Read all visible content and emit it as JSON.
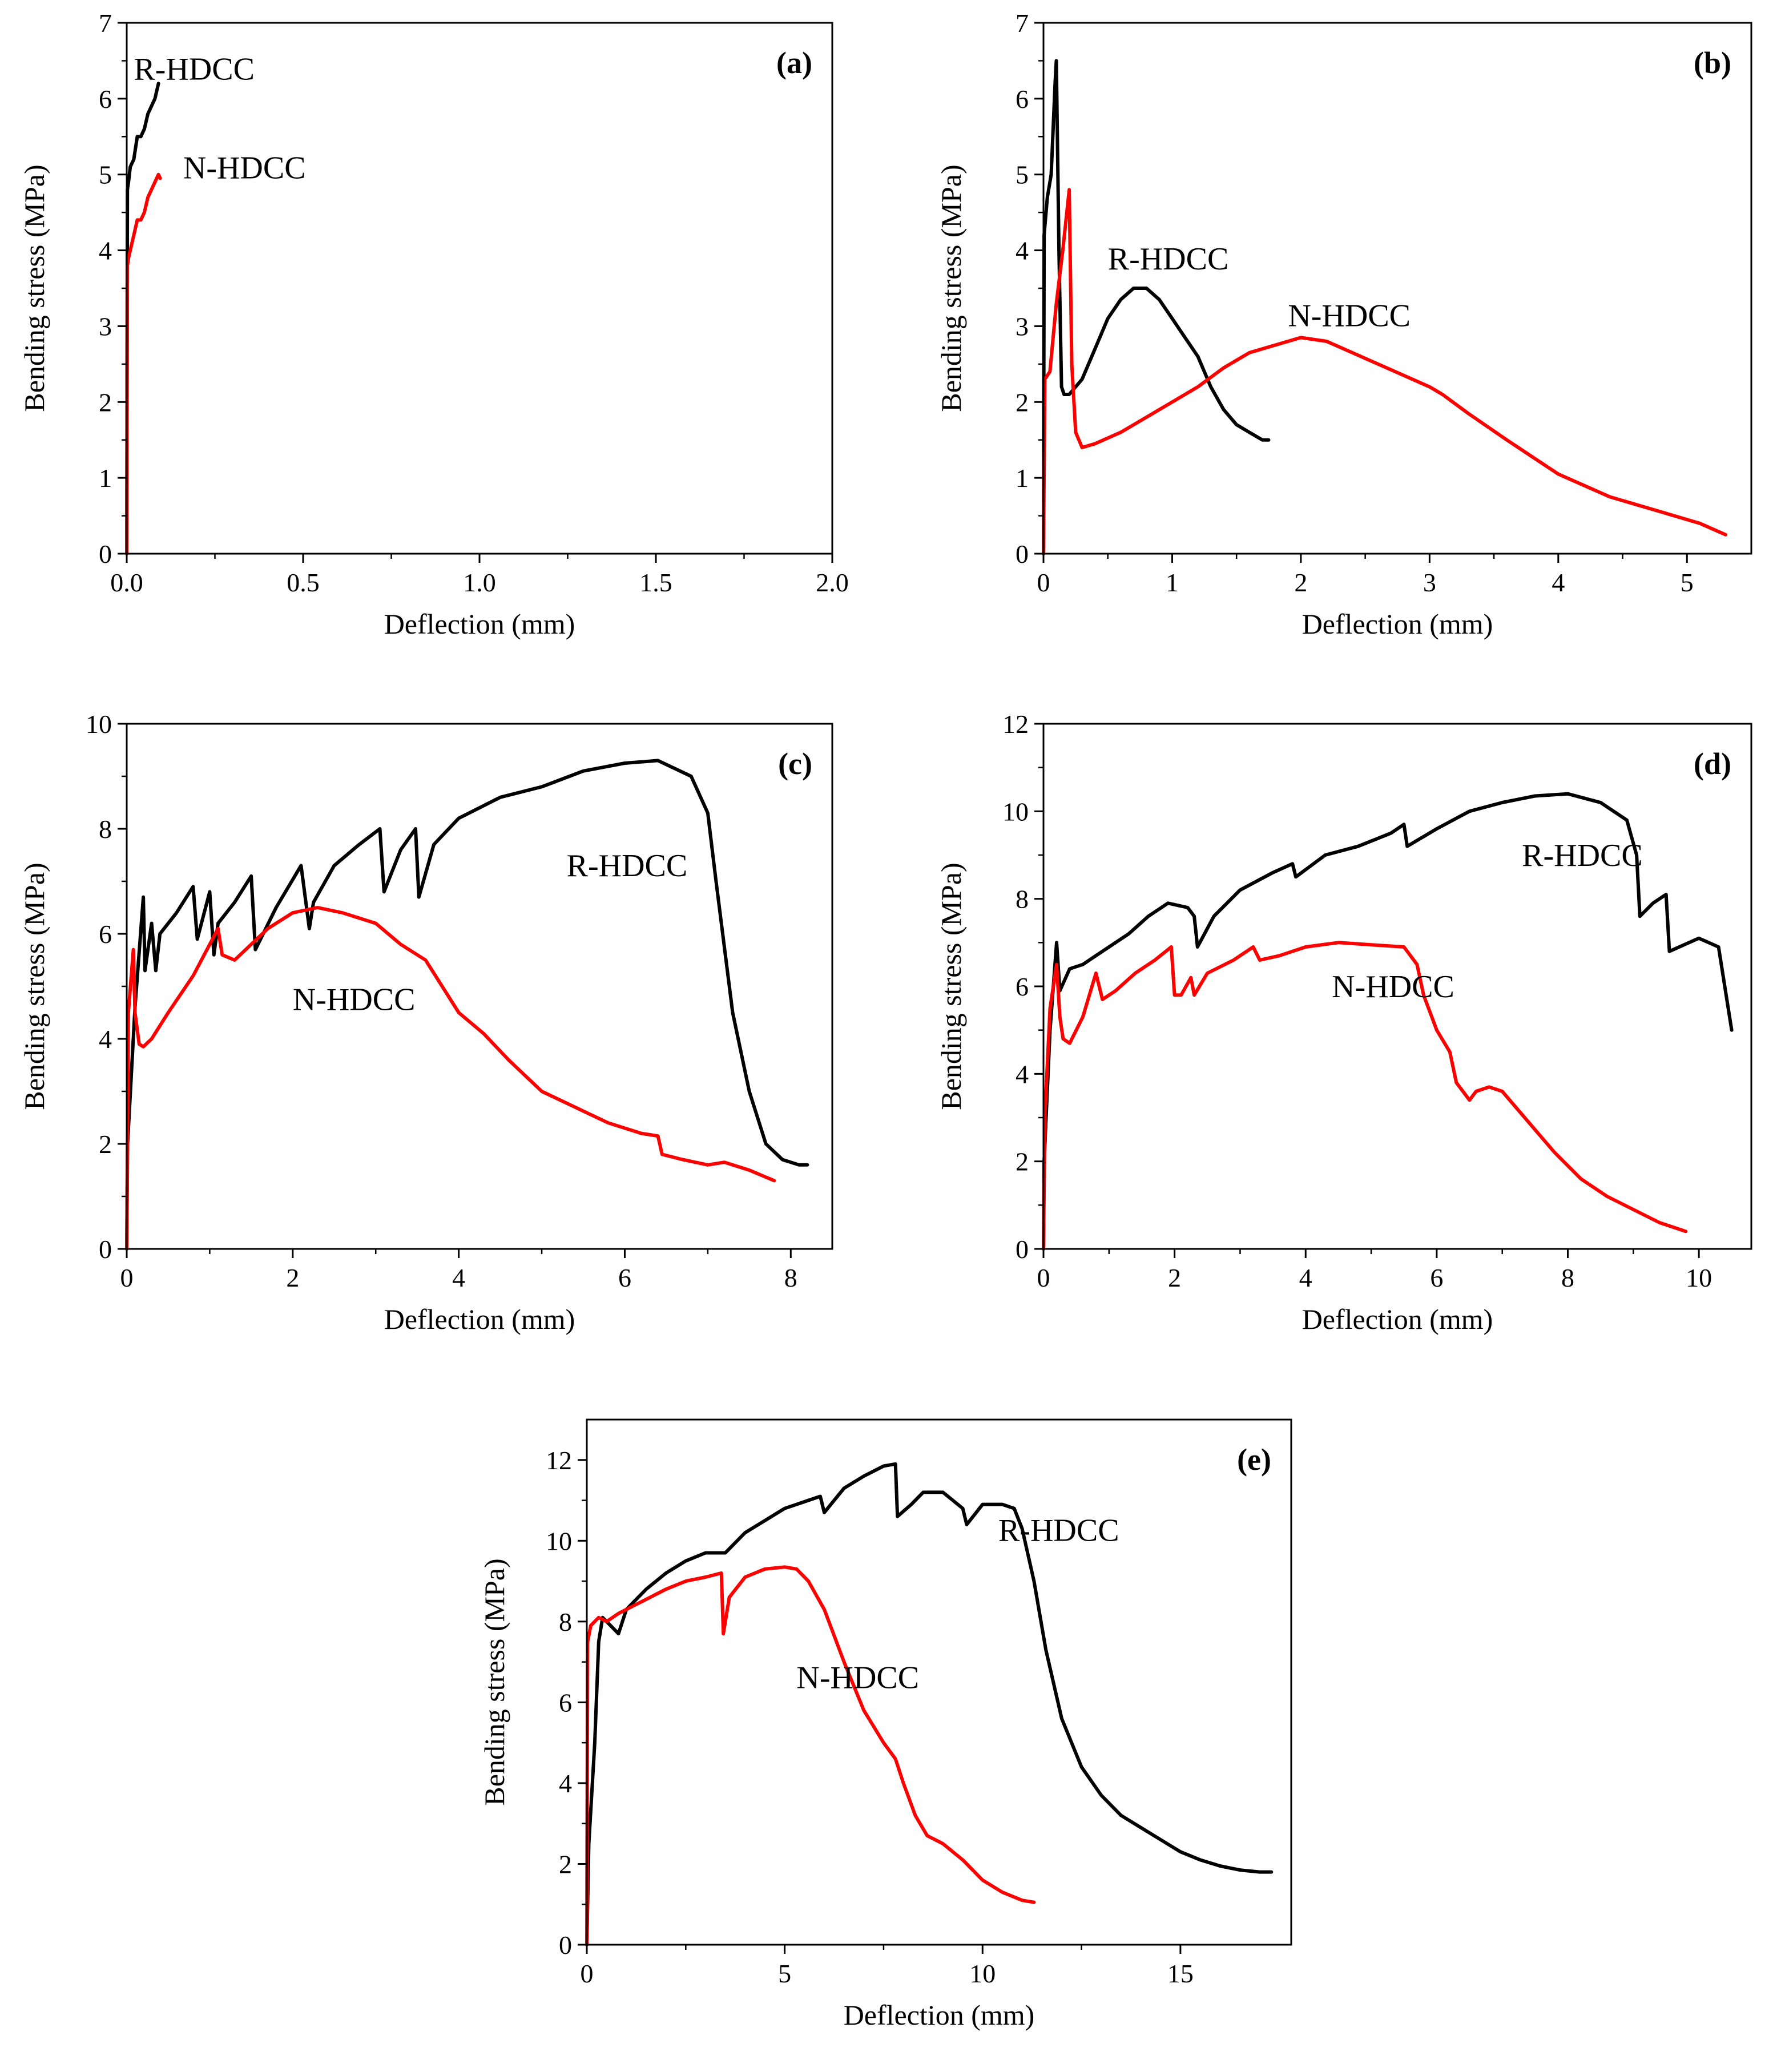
{
  "figure": {
    "colors": {
      "R-HDCC": "#000000",
      "N-HDCC": "#ff0000",
      "axis": "#000000"
    }
  },
  "chart_data": [
    {
      "id": "a",
      "type": "line",
      "panel_label": "(a)",
      "xlabel": "Deflection (mm)",
      "ylabel": "Bending stress (MPa)",
      "xlim": [
        0,
        2.0
      ],
      "ylim": [
        0,
        7
      ],
      "xticks": [
        0,
        0.5,
        1.0,
        1.5,
        2.0
      ],
      "xtick_labels": [
        "0.0",
        "0.5",
        "1.0",
        "1.5",
        "2.0"
      ],
      "yticks": [
        0,
        1,
        2,
        3,
        4,
        5,
        6,
        7
      ],
      "ytick_labels": [
        "0",
        "1",
        "2",
        "3",
        "4",
        "5",
        "6",
        "7"
      ],
      "series": [
        {
          "name": "R-HDCC",
          "label": "R-HDCC",
          "x": [
            0,
            0.002,
            0.005,
            0.01,
            0.02,
            0.03,
            0.04,
            0.05,
            0.06,
            0.07,
            0.08,
            0.09
          ],
          "values": [
            0,
            4.8,
            4.9,
            5.1,
            5.2,
            5.5,
            5.5,
            5.6,
            5.8,
            5.9,
            6.0,
            6.2
          ]
        },
        {
          "name": "N-HDCC",
          "label": "N-HDCC",
          "x": [
            0,
            0.002,
            0.005,
            0.01,
            0.02,
            0.03,
            0.04,
            0.05,
            0.06,
            0.07,
            0.08,
            0.09,
            0.095
          ],
          "values": [
            0,
            3.8,
            3.9,
            4.0,
            4.2,
            4.4,
            4.4,
            4.5,
            4.7,
            4.8,
            4.9,
            5.0,
            4.95
          ]
        }
      ]
    },
    {
      "id": "b",
      "type": "line",
      "panel_label": "(b)",
      "xlabel": "Deflection (mm)",
      "ylabel": "Bending stress (MPa)",
      "xlim": [
        0,
        5.5
      ],
      "ylim": [
        0,
        7
      ],
      "xticks": [
        0,
        1,
        2,
        3,
        4,
        5
      ],
      "xtick_labels": [
        "0",
        "1",
        "2",
        "3",
        "4",
        "5"
      ],
      "yticks": [
        0,
        1,
        2,
        3,
        4,
        5,
        6,
        7
      ],
      "ytick_labels": [
        "0",
        "1",
        "2",
        "3",
        "4",
        "5",
        "6",
        "7"
      ],
      "series": [
        {
          "name": "R-HDCC",
          "label": "R-HDCC",
          "x": [
            0,
            0.005,
            0.03,
            0.06,
            0.09,
            0.1,
            0.12,
            0.14,
            0.16,
            0.2,
            0.3,
            0.4,
            0.5,
            0.6,
            0.7,
            0.8,
            0.9,
            1.0,
            1.1,
            1.2,
            1.3,
            1.4,
            1.5,
            1.6,
            1.7,
            1.75
          ],
          "values": [
            0,
            4.2,
            4.7,
            5.0,
            6.2,
            6.5,
            4.0,
            2.2,
            2.1,
            2.1,
            2.3,
            2.7,
            3.1,
            3.35,
            3.5,
            3.5,
            3.35,
            3.1,
            2.85,
            2.6,
            2.2,
            1.9,
            1.7,
            1.6,
            1.5,
            1.5
          ]
        },
        {
          "name": "N-HDCC",
          "label": "N-HDCC",
          "x": [
            0,
            0.01,
            0.05,
            0.1,
            0.15,
            0.2,
            0.22,
            0.25,
            0.3,
            0.4,
            0.6,
            0.8,
            1.0,
            1.2,
            1.4,
            1.6,
            1.8,
            2.0,
            2.2,
            2.4,
            2.6,
            2.8,
            3.0,
            3.1,
            3.3,
            3.6,
            4.0,
            4.4,
            4.8,
            5.1,
            5.3
          ],
          "values": [
            0,
            2.3,
            2.4,
            3.3,
            4.0,
            4.8,
            2.5,
            1.6,
            1.4,
            1.45,
            1.6,
            1.8,
            2.0,
            2.2,
            2.45,
            2.65,
            2.75,
            2.85,
            2.8,
            2.65,
            2.5,
            2.35,
            2.2,
            2.1,
            1.85,
            1.5,
            1.05,
            0.75,
            0.55,
            0.4,
            0.25
          ]
        }
      ]
    },
    {
      "id": "c",
      "type": "line",
      "panel_label": "(c)",
      "xlabel": "Deflection (mm)",
      "ylabel": "Bending stress (MPa)",
      "xlim": [
        0,
        8.5
      ],
      "ylim": [
        0,
        10
      ],
      "xticks": [
        0,
        2,
        4,
        6,
        8
      ],
      "xtick_labels": [
        "0",
        "2",
        "4",
        "6",
        "8"
      ],
      "yticks": [
        0,
        2,
        4,
        6,
        8,
        10
      ],
      "ytick_labels": [
        "0",
        "2",
        "4",
        "6",
        "8",
        "10"
      ],
      "series": [
        {
          "name": "R-HDCC",
          "label": "R-HDCC",
          "x": [
            0,
            0.01,
            0.1,
            0.2,
            0.22,
            0.3,
            0.35,
            0.4,
            0.5,
            0.6,
            0.8,
            0.85,
            1.0,
            1.05,
            1.1,
            1.3,
            1.5,
            1.55,
            1.8,
            2.1,
            2.2,
            2.25,
            2.5,
            2.8,
            3.05,
            3.1,
            3.3,
            3.48,
            3.52,
            3.7,
            4.0,
            4.5,
            5.0,
            5.5,
            6.0,
            6.4,
            6.8,
            7.0,
            7.1,
            7.3,
            7.5,
            7.7,
            7.9,
            8.1,
            8.2
          ],
          "values": [
            0,
            2.0,
            4.6,
            6.7,
            5.3,
            6.2,
            5.3,
            6.0,
            6.2,
            6.4,
            6.9,
            5.9,
            6.8,
            5.6,
            6.2,
            6.6,
            7.1,
            5.7,
            6.5,
            7.3,
            6.1,
            6.6,
            7.3,
            7.7,
            8.0,
            6.8,
            7.6,
            8.0,
            6.7,
            7.7,
            8.2,
            8.6,
            8.8,
            9.1,
            9.25,
            9.3,
            9.0,
            8.3,
            7.0,
            4.5,
            3.0,
            2.0,
            1.7,
            1.6,
            1.6
          ]
        },
        {
          "name": "N-HDCC",
          "label": "N-HDCC",
          "x": [
            0,
            0.02,
            0.08,
            0.1,
            0.15,
            0.2,
            0.3,
            0.5,
            0.8,
            1.1,
            1.15,
            1.3,
            1.5,
            1.7,
            2.0,
            2.3,
            2.6,
            3.0,
            3.3,
            3.6,
            3.8,
            4.0,
            4.3,
            4.6,
            5.0,
            5.4,
            5.8,
            6.2,
            6.4,
            6.45,
            6.7,
            7.0,
            7.2,
            7.5,
            7.8
          ],
          "values": [
            0,
            4.5,
            5.7,
            4.5,
            3.9,
            3.85,
            4.0,
            4.5,
            5.2,
            6.1,
            5.6,
            5.5,
            5.8,
            6.1,
            6.4,
            6.5,
            6.4,
            6.2,
            5.8,
            5.5,
            5.0,
            4.5,
            4.1,
            3.6,
            3.0,
            2.7,
            2.4,
            2.2,
            2.15,
            1.8,
            1.7,
            1.6,
            1.65,
            1.5,
            1.3
          ]
        }
      ]
    },
    {
      "id": "d",
      "type": "line",
      "panel_label": "(d)",
      "xlabel": "Deflection (mm)",
      "ylabel": "Bending stress (MPa)",
      "xlim": [
        0,
        10.8
      ],
      "ylim": [
        0,
        12
      ],
      "xticks": [
        0,
        2,
        4,
        6,
        8,
        10
      ],
      "xtick_labels": [
        "0",
        "2",
        "4",
        "6",
        "8",
        "10"
      ],
      "yticks": [
        0,
        2,
        4,
        6,
        8,
        10,
        12
      ],
      "ytick_labels": [
        "0",
        "2",
        "4",
        "6",
        "8",
        "10",
        "12"
      ],
      "series": [
        {
          "name": "R-HDCC",
          "label": "R-HDCC",
          "x": [
            0,
            0.01,
            0.1,
            0.2,
            0.25,
            0.4,
            0.6,
            0.8,
            1.0,
            1.3,
            1.6,
            1.9,
            2.2,
            2.3,
            2.35,
            2.6,
            3.0,
            3.5,
            3.8,
            3.85,
            4.3,
            4.8,
            5.3,
            5.5,
            5.55,
            6.0,
            6.5,
            7.0,
            7.5,
            8.0,
            8.5,
            8.9,
            9.05,
            9.1,
            9.3,
            9.5,
            9.55,
            9.7,
            10.0,
            10.3,
            10.5
          ],
          "values": [
            0,
            2.0,
            5.0,
            7.0,
            5.9,
            6.4,
            6.5,
            6.7,
            6.9,
            7.2,
            7.6,
            7.9,
            7.8,
            7.6,
            6.9,
            7.6,
            8.2,
            8.6,
            8.8,
            8.5,
            9.0,
            9.2,
            9.5,
            9.7,
            9.2,
            9.6,
            10.0,
            10.2,
            10.35,
            10.4,
            10.2,
            9.8,
            9.0,
            7.6,
            7.9,
            8.1,
            6.8,
            6.9,
            7.1,
            6.9,
            5.0
          ]
        },
        {
          "name": "N-HDCC",
          "label": "N-HDCC",
          "x": [
            0,
            0.02,
            0.1,
            0.2,
            0.25,
            0.3,
            0.4,
            0.6,
            0.8,
            0.9,
            1.1,
            1.4,
            1.7,
            1.95,
            2.0,
            2.1,
            2.25,
            2.3,
            2.5,
            2.9,
            3.2,
            3.3,
            3.6,
            4.0,
            4.5,
            5.0,
            5.5,
            5.7,
            5.8,
            6.0,
            6.2,
            6.3,
            6.5,
            6.6,
            6.8,
            7.0,
            7.4,
            7.8,
            8.2,
            8.6,
            9.0,
            9.4,
            9.8
          ],
          "values": [
            0,
            3.0,
            5.5,
            6.5,
            5.3,
            4.8,
            4.7,
            5.3,
            6.3,
            5.7,
            5.9,
            6.3,
            6.6,
            6.9,
            5.8,
            5.8,
            6.2,
            5.8,
            6.3,
            6.6,
            6.9,
            6.6,
            6.7,
            6.9,
            7.0,
            6.95,
            6.9,
            6.5,
            5.8,
            5.0,
            4.5,
            3.8,
            3.4,
            3.6,
            3.7,
            3.6,
            2.9,
            2.2,
            1.6,
            1.2,
            0.9,
            0.6,
            0.4
          ]
        }
      ]
    },
    {
      "id": "e",
      "type": "line",
      "panel_label": "(e)",
      "xlabel": "Deflection (mm)",
      "ylabel": "Bending stress (MPa)",
      "xlim": [
        0,
        17.8
      ],
      "ylim": [
        0,
        13
      ],
      "xticks": [
        0,
        5,
        10,
        15
      ],
      "xtick_labels": [
        "0",
        "5",
        "10",
        "15"
      ],
      "yticks": [
        0,
        2,
        4,
        6,
        8,
        10,
        12
      ],
      "ytick_labels": [
        "0",
        "2",
        "4",
        "6",
        "8",
        "10",
        "12"
      ],
      "series": [
        {
          "name": "R-HDCC",
          "label": "R-HDCC",
          "x": [
            0,
            0.05,
            0.2,
            0.3,
            0.4,
            0.6,
            0.8,
            1.0,
            1.5,
            2.0,
            2.5,
            3.0,
            3.5,
            4.0,
            5.0,
            5.9,
            6.0,
            6.5,
            7.0,
            7.5,
            7.8,
            7.85,
            8.2,
            8.5,
            9.0,
            9.5,
            9.6,
            10.0,
            10.5,
            10.8,
            11.0,
            11.3,
            11.6,
            12.0,
            12.5,
            13.0,
            13.5,
            14.0,
            14.5,
            15.0,
            15.5,
            16.0,
            16.5,
            17.0,
            17.3
          ],
          "values": [
            0,
            2.5,
            5.0,
            7.5,
            8.1,
            7.9,
            7.7,
            8.3,
            8.8,
            9.2,
            9.5,
            9.7,
            9.7,
            10.2,
            10.8,
            11.1,
            10.7,
            11.3,
            11.6,
            11.85,
            11.9,
            10.6,
            10.9,
            11.2,
            11.2,
            10.8,
            10.4,
            10.9,
            10.9,
            10.8,
            10.3,
            9.0,
            7.3,
            5.6,
            4.4,
            3.7,
            3.2,
            2.9,
            2.6,
            2.3,
            2.1,
            1.95,
            1.85,
            1.8,
            1.8
          ]
        },
        {
          "name": "N-HDCC",
          "label": "N-HDCC",
          "x": [
            0,
            0.02,
            0.1,
            0.3,
            0.5,
            0.8,
            1.2,
            1.6,
            2.0,
            2.5,
            3.0,
            3.4,
            3.45,
            3.6,
            4.0,
            4.5,
            5.0,
            5.3,
            5.6,
            6.0,
            6.5,
            7.0,
            7.5,
            7.8,
            8.0,
            8.3,
            8.6,
            9.0,
            9.5,
            10.0,
            10.5,
            11.0,
            11.3
          ],
          "values": [
            0,
            7.5,
            7.9,
            8.1,
            8.0,
            8.2,
            8.4,
            8.6,
            8.8,
            9.0,
            9.1,
            9.2,
            7.7,
            8.6,
            9.1,
            9.3,
            9.35,
            9.3,
            9.0,
            8.3,
            7.0,
            5.8,
            5.0,
            4.6,
            4.0,
            3.2,
            2.7,
            2.5,
            2.1,
            1.6,
            1.3,
            1.1,
            1.05
          ]
        }
      ]
    }
  ]
}
